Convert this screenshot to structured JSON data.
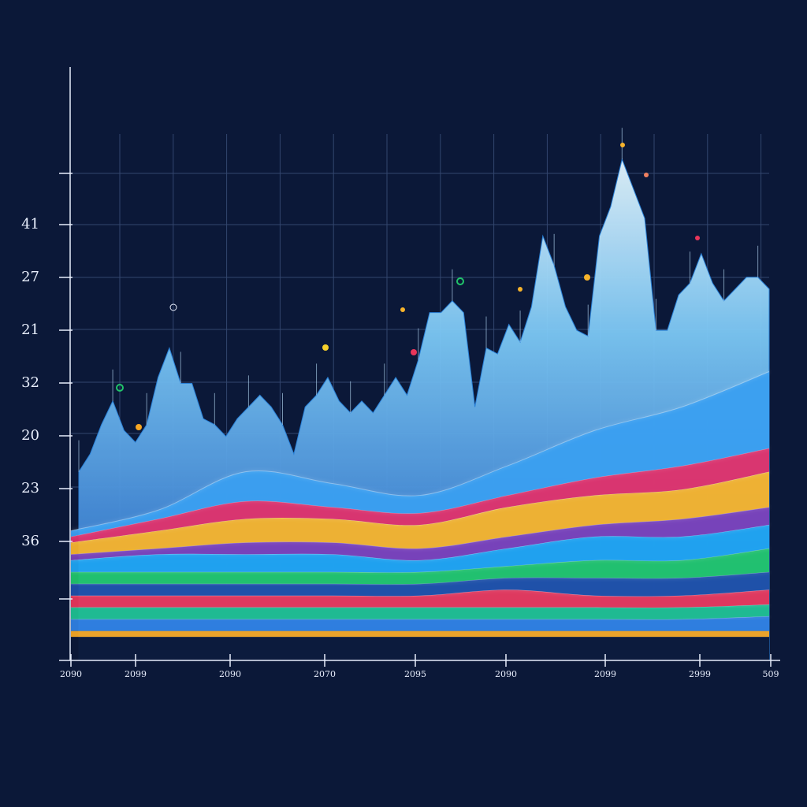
{
  "chart_data": {
    "type": "stream",
    "x_labels": [
      "2090",
      "2099",
      "2090",
      "2070",
      "2095",
      "2090",
      "2099",
      "2999",
      "509"
    ],
    "y_labels": [
      "41",
      "27",
      "21",
      "32",
      "20",
      "23",
      "36"
    ],
    "ylim": [
      0,
      100
    ],
    "spikes": {
      "color": "#2b86e0",
      "values": [
        32,
        35,
        40,
        44,
        39,
        37,
        40,
        48,
        53,
        47,
        47,
        41,
        40,
        38,
        41,
        43,
        45,
        43,
        40,
        35,
        43,
        45,
        48,
        44,
        42,
        44,
        42,
        45,
        48,
        45,
        51,
        59,
        59,
        61,
        59,
        43,
        53,
        52,
        57,
        54,
        60,
        72,
        67,
        60,
        56,
        55,
        72,
        77,
        85,
        80,
        75,
        56,
        56,
        62,
        64,
        69,
        64,
        61,
        63,
        65,
        65,
        63
      ]
    },
    "bands": [
      {
        "color": "#0c1736",
        "values": [
          4,
          4,
          4,
          4,
          4,
          4,
          4,
          4,
          4
        ]
      },
      {
        "color": "#f5a623",
        "values": [
          1,
          1,
          1,
          1,
          1,
          1,
          1,
          1,
          1
        ]
      },
      {
        "color": "#2f7fe0",
        "values": [
          2,
          2,
          2,
          2,
          2,
          2,
          2,
          2,
          2.5
        ]
      },
      {
        "color": "#1fbf8f",
        "values": [
          2,
          2,
          2,
          2,
          2,
          2,
          2,
          2,
          2
        ]
      },
      {
        "color": "#e8365a",
        "values": [
          2,
          2,
          2,
          2,
          2,
          3,
          2,
          2,
          2.5
        ]
      },
      {
        "color": "#1f4fa8",
        "values": [
          2,
          2,
          2,
          2,
          2,
          2,
          3,
          3,
          3
        ]
      },
      {
        "color": "#21c46a",
        "values": [
          2,
          2,
          2,
          2,
          2,
          2,
          3,
          3,
          4
        ]
      },
      {
        "color": "#1fa3f0",
        "values": [
          2,
          3,
          3,
          3,
          2,
          3,
          4,
          4,
          4
        ]
      },
      {
        "color": "#7a3fb8",
        "values": [
          1,
          1,
          2,
          2,
          2,
          2,
          2,
          3,
          3
        ]
      },
      {
        "color": "#f7b32b",
        "values": [
          2,
          3,
          4,
          4,
          4,
          5,
          5,
          5,
          6
        ]
      },
      {
        "color": "#e0306a",
        "values": [
          1,
          2,
          3,
          2,
          2,
          2,
          3,
          4,
          4
        ]
      },
      {
        "color": "#3a9ff0",
        "values": [
          1,
          1.5,
          5,
          4,
          3,
          5,
          8,
          10,
          13
        ]
      }
    ]
  }
}
